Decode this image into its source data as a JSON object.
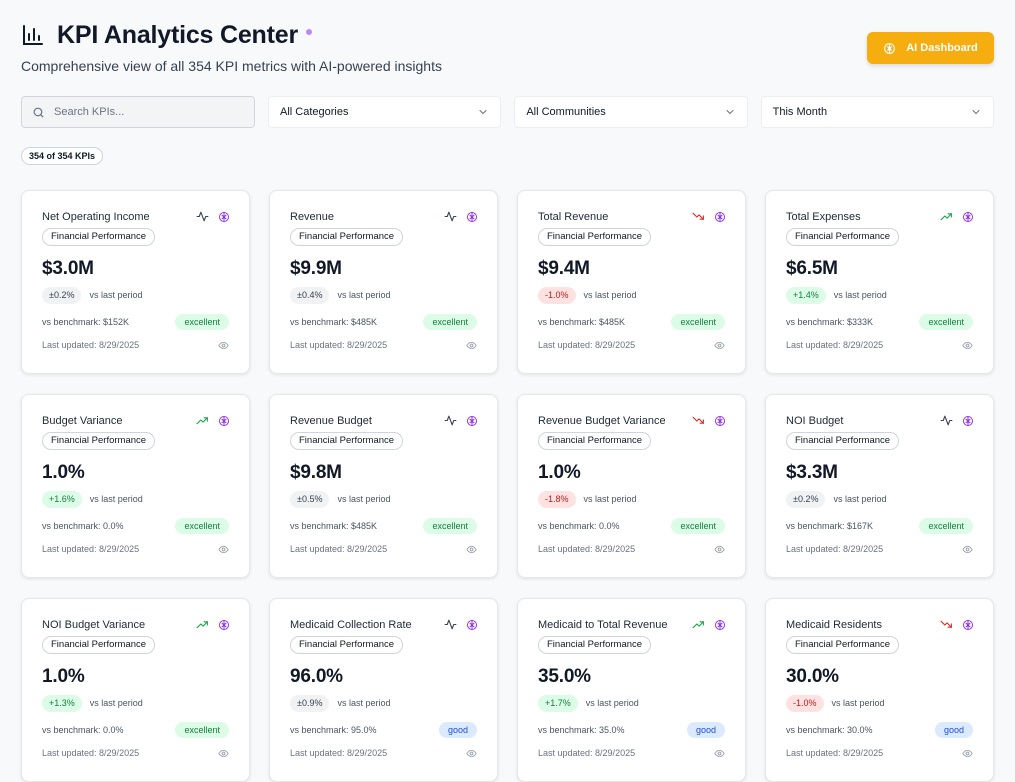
{
  "header": {
    "title": "KPI Analytics Center",
    "subtitle": "Comprehensive view of all 354 KPI metrics with AI-powered insights",
    "ai_button_label": "AI Dashboard"
  },
  "filters": {
    "search_placeholder": "Search KPIs...",
    "category": "All Categories",
    "community": "All Communities",
    "period": "This Month"
  },
  "count_badge": "354 of 354 KPIs",
  "colors": {
    "accent": "#f5ad10",
    "trend_up": "#16a34a",
    "trend_down": "#dc2626",
    "brain": "#9333ea"
  },
  "cards": [
    {
      "name": "Net Operating Income",
      "category": "Financial Performance",
      "value": "$3.0M",
      "change": "±0.2%",
      "change_type": "neutral",
      "trend_icon": "activity-icon",
      "vs_label": "vs last period",
      "benchmark": "vs benchmark: $152K",
      "rating": "excellent",
      "updated": "Last updated: 8/29/2025"
    },
    {
      "name": "Revenue",
      "category": "Financial Performance",
      "value": "$9.9M",
      "change": "±0.4%",
      "change_type": "neutral",
      "trend_icon": "activity-icon",
      "vs_label": "vs last period",
      "benchmark": "vs benchmark: $485K",
      "rating": "excellent",
      "updated": "Last updated: 8/29/2025"
    },
    {
      "name": "Total Revenue",
      "category": "Financial Performance",
      "value": "$9.4M",
      "change": "-1.0%",
      "change_type": "down",
      "trend_icon": "trending-down-icon",
      "vs_label": "vs last period",
      "benchmark": "vs benchmark: $485K",
      "rating": "excellent",
      "updated": "Last updated: 8/29/2025"
    },
    {
      "name": "Total Expenses",
      "category": "Financial Performance",
      "value": "$6.5M",
      "change": "+1.4%",
      "change_type": "up",
      "trend_icon": "trending-up-icon",
      "vs_label": "vs last period",
      "benchmark": "vs benchmark: $333K",
      "rating": "excellent",
      "updated": "Last updated: 8/29/2025"
    },
    {
      "name": "Budget Variance",
      "category": "Financial Performance",
      "value": "1.0%",
      "change": "+1.6%",
      "change_type": "up",
      "trend_icon": "trending-up-icon",
      "vs_label": "vs last period",
      "benchmark": "vs benchmark: 0.0%",
      "rating": "excellent",
      "updated": "Last updated: 8/29/2025"
    },
    {
      "name": "Revenue Budget",
      "category": "Financial Performance",
      "value": "$9.8M",
      "change": "±0.5%",
      "change_type": "neutral",
      "trend_icon": "activity-icon",
      "vs_label": "vs last period",
      "benchmark": "vs benchmark: $485K",
      "rating": "excellent",
      "updated": "Last updated: 8/29/2025"
    },
    {
      "name": "Revenue Budget Variance",
      "category": "Financial Performance",
      "value": "1.0%",
      "change": "-1.8%",
      "change_type": "down",
      "trend_icon": "trending-down-icon",
      "vs_label": "vs last period",
      "benchmark": "vs benchmark: 0.0%",
      "rating": "excellent",
      "updated": "Last updated: 8/29/2025"
    },
    {
      "name": "NOI Budget",
      "category": "Financial Performance",
      "value": "$3.3M",
      "change": "±0.2%",
      "change_type": "neutral",
      "trend_icon": "activity-icon",
      "vs_label": "vs last period",
      "benchmark": "vs benchmark: $167K",
      "rating": "excellent",
      "updated": "Last updated: 8/29/2025"
    },
    {
      "name": "NOI Budget Variance",
      "category": "Financial Performance",
      "value": "1.0%",
      "change": "+1.3%",
      "change_type": "up",
      "trend_icon": "trending-up-icon",
      "vs_label": "vs last period",
      "benchmark": "vs benchmark: 0.0%",
      "rating": "excellent",
      "updated": "Last updated: 8/29/2025"
    },
    {
      "name": "Medicaid Collection Rate",
      "category": "Financial Performance",
      "value": "96.0%",
      "change": "±0.9%",
      "change_type": "neutral",
      "trend_icon": "activity-icon",
      "vs_label": "vs last period",
      "benchmark": "vs benchmark: 95.0%",
      "rating": "good",
      "updated": "Last updated: 8/29/2025"
    },
    {
      "name": "Medicaid to Total Revenue",
      "category": "Financial Performance",
      "value": "35.0%",
      "change": "+1.7%",
      "change_type": "up",
      "trend_icon": "trending-up-icon",
      "vs_label": "vs last period",
      "benchmark": "vs benchmark: 35.0%",
      "rating": "good",
      "updated": "Last updated: 8/29/2025"
    },
    {
      "name": "Medicaid Residents",
      "category": "Financial Performance",
      "value": "30.0%",
      "change": "-1.0%",
      "change_type": "down",
      "trend_icon": "trending-down-icon",
      "vs_label": "vs last period",
      "benchmark": "vs benchmark: 30.0%",
      "rating": "good",
      "updated": "Last updated: 8/29/2025"
    }
  ]
}
